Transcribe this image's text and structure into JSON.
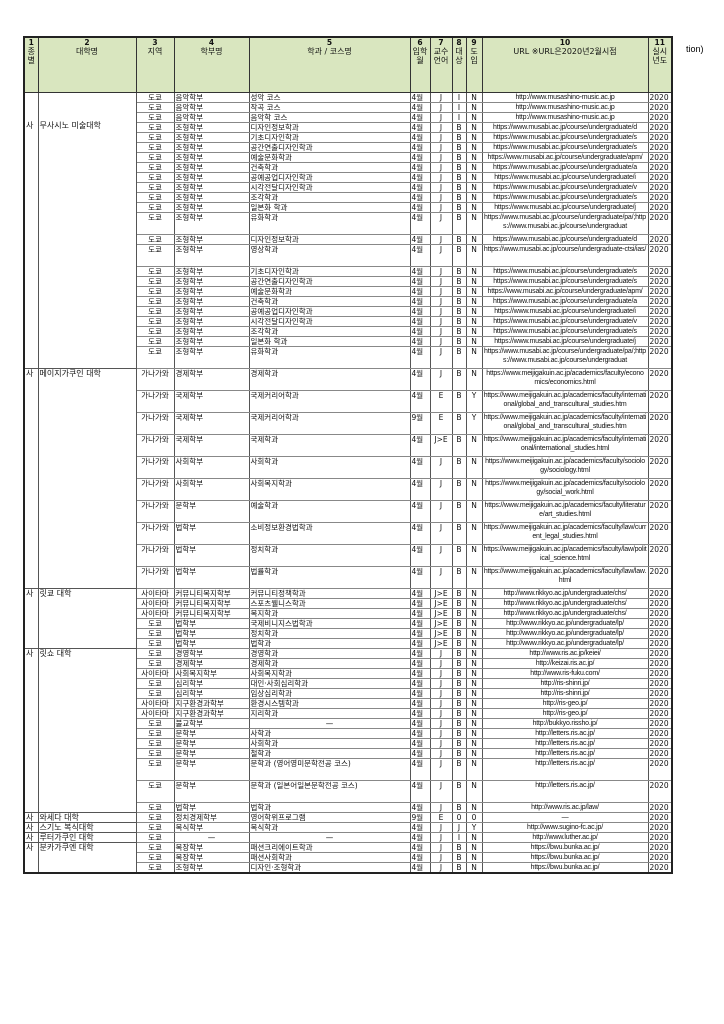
{
  "overflow_text": "tion)",
  "header": [
    {
      "num": "1",
      "label": "종별"
    },
    {
      "num": "2",
      "label": "대학명"
    },
    {
      "num": "3",
      "label": "지역"
    },
    {
      "num": "4",
      "label": "학부명"
    },
    {
      "num": "5",
      "label": "학과 / 코스명"
    },
    {
      "num": "6",
      "label": "입학월"
    },
    {
      "num": "7",
      "label": "교수언어"
    },
    {
      "num": "8",
      "label": "대상"
    },
    {
      "num": "9",
      "label": "도입"
    },
    {
      "num": "10",
      "label": "URL ※URL은2020년2월시점"
    },
    {
      "num": "11",
      "label": "실시년도"
    }
  ],
  "groups": [
    {
      "type": "사",
      "name": "무사시노 미술대학",
      "rows": [
        [
          "도쿄",
          "음악학부",
          "성악 코스",
          "4월",
          "J",
          "I",
          "N",
          "http://www.musashino-music.ac.jp",
          "2020"
        ],
        [
          "도쿄",
          "음악학부",
          "작곡 코스",
          "4월",
          "J",
          "I",
          "N",
          "http://www.musashino-music.ac.jp",
          "2020"
        ],
        [
          "도쿄",
          "음악학부",
          "음악학 코스",
          "4월",
          "J",
          "I",
          "N",
          "http://www.musashino-music.ac.jp",
          "2020"
        ],
        [
          "도쿄",
          "조형학부",
          "디자인정보학과",
          "4월",
          "J",
          "B",
          "N",
          "https://www.musabi.ac.jp/course/undergraduate/d",
          "2020"
        ],
        [
          "도쿄",
          "조형학부",
          "기초디자인학과",
          "4월",
          "J",
          "B",
          "N",
          "https://www.musabi.ac.jp/course/undergraduate/s",
          "2020"
        ],
        [
          "도쿄",
          "조형학부",
          "공간연출디자인학과",
          "4월",
          "J",
          "B",
          "N",
          "https://www.musabi.ac.jp/course/undergraduate/s",
          "2020"
        ],
        [
          "도쿄",
          "조형학부",
          "예술문화학과",
          "4월",
          "J",
          "B",
          "N",
          "https://www.musabi.ac.jp/course/undergraduate/apm/",
          "2020"
        ],
        [
          "도쿄",
          "조형학부",
          "건축학과",
          "4월",
          "J",
          "B",
          "N",
          "https://www.musabi.ac.jp/course/undergraduate/a",
          "2020"
        ],
        [
          "도쿄",
          "조형학부",
          "공예공업디자인학과",
          "4월",
          "J",
          "B",
          "N",
          "https://www.musabi.ac.jp/course/undergraduate/i",
          "2020"
        ],
        [
          "도쿄",
          "조형학부",
          "시각전달디자인학과",
          "4월",
          "J",
          "B",
          "N",
          "https://www.musabi.ac.jp/course/undergraduate/v",
          "2020"
        ],
        [
          "도쿄",
          "조형학부",
          "조각학과",
          "4월",
          "J",
          "B",
          "N",
          "https://www.musabi.ac.jp/course/undergraduate/s",
          "2020"
        ],
        [
          "도쿄",
          "조형학부",
          "일본화 학과",
          "4월",
          "J",
          "B",
          "N",
          "https://www.musabi.ac.jp/course/undergraduate/j",
          "2020"
        ],
        [
          "도쿄",
          "조형학부",
          "유화학과",
          "4월",
          "J",
          "B",
          "N",
          "https://www.musabi.ac.jp/course/undergraduate/pa/;https://www.musabi.ac.jp/course/undergraduat",
          "2020"
        ],
        [
          "도쿄",
          "조형학부",
          "디자인정보학과",
          "4월",
          "J",
          "B",
          "N",
          "https://www.musabi.ac.jp/course/undergraduate/d",
          "2020"
        ],
        [
          "도쿄",
          "조형학부",
          "영상학과",
          "4월",
          "J",
          "B",
          "N",
          "https://www.musabi.ac.jp/course/undergraduate-ctsi/ias/",
          "2020"
        ],
        [
          "도쿄",
          "조형학부",
          "기초디자인학과",
          "4월",
          "J",
          "B",
          "N",
          "https://www.musabi.ac.jp/course/undergraduate/s",
          "2020"
        ],
        [
          "도쿄",
          "조형학부",
          "공간연출디자인학과",
          "4월",
          "J",
          "B",
          "N",
          "https://www.musabi.ac.jp/course/undergraduate/s",
          "2020"
        ],
        [
          "도쿄",
          "조형학부",
          "예술문화학과",
          "4월",
          "J",
          "B",
          "N",
          "https://www.musabi.ac.jp/course/undergraduate/apm/",
          "2020"
        ],
        [
          "도쿄",
          "조형학부",
          "건축학과",
          "4월",
          "J",
          "B",
          "N",
          "https://www.musabi.ac.jp/course/undergraduate/a",
          "2020"
        ],
        [
          "도쿄",
          "조형학부",
          "공예공업디자인학과",
          "4월",
          "J",
          "B",
          "N",
          "https://www.musabi.ac.jp/course/undergraduate/i",
          "2020"
        ],
        [
          "도쿄",
          "조형학부",
          "시각전달디자인학과",
          "4월",
          "J",
          "B",
          "N",
          "https://www.musabi.ac.jp/course/undergraduate/v",
          "2020"
        ],
        [
          "도쿄",
          "조형학부",
          "조각학과",
          "4월",
          "J",
          "B",
          "N",
          "https://www.musabi.ac.jp/course/undergraduate/s",
          "2020"
        ],
        [
          "도쿄",
          "조형학부",
          "일본화 학과",
          "4월",
          "J",
          "B",
          "N",
          "https://www.musabi.ac.jp/course/undergraduate/j",
          "2020"
        ],
        [
          "도쿄",
          "조형학부",
          "유화학과",
          "4월",
          "J",
          "B",
          "N",
          "https://www.musabi.ac.jp/course/undergraduate/pa/;https://www.musabi.ac.jp/course/undergraduat",
          "2020"
        ]
      ]
    },
    {
      "type": "사",
      "name": "메이지가쿠인 대학",
      "rows": [
        [
          "가나가와",
          "경제학부",
          "경제학과",
          "4월",
          "J",
          "B",
          "N",
          "https://www.meijigakuin.ac.jp/academics/faculty/economics/economics.html",
          "2020"
        ],
        [
          "가나가와",
          "국제학부",
          "국제커리어학과",
          "4월",
          "E",
          "B",
          "Y",
          "https://www.meijigakuin.ac.jp/academics/faculty/international/global_and_transcultural_studies.htm",
          "2020"
        ],
        [
          "가나가와",
          "국제학부",
          "국제커리어학과",
          "9월",
          "E",
          "B",
          "Y",
          "https://www.meijigakuin.ac.jp/academics/faculty/international/global_and_transcultural_studies.htm",
          "2020"
        ],
        [
          "가나가와",
          "국제학부",
          "국제학과",
          "4월",
          "J>E",
          "B",
          "N",
          "https://www.meijigakuin.ac.jp/academics/faculty/international/international_studies.html",
          "2020"
        ],
        [
          "가나가와",
          "사회학부",
          "사회학과",
          "4월",
          "J",
          "B",
          "N",
          "https://www.meijigakuin.ac.jp/academics/faculty/sociology/sociology.html",
          "2020"
        ],
        [
          "가나가와",
          "사회학부",
          "사회복지학과",
          "4월",
          "J",
          "B",
          "N",
          "https://www.meijigakuin.ac.jp/academics/faculty/sociology/social_work.html",
          "2020"
        ],
        [
          "가나가와",
          "문학부",
          "예술학과",
          "4월",
          "J",
          "B",
          "N",
          "https://www.meijigakuin.ac.jp/academics/faculty/literature/art_studies.html",
          "2020"
        ],
        [
          "가나가와",
          "법학부",
          "소비정보환경법학과",
          "4월",
          "J",
          "B",
          "N",
          "https://www.meijigakuin.ac.jp/academics/faculty/law/current_legal_studies.html",
          "2020"
        ],
        [
          "가나가와",
          "법학부",
          "정치학과",
          "4월",
          "J",
          "B",
          "N",
          "https://www.meijigakuin.ac.jp/academics/faculty/law/political_science.html",
          "2020"
        ],
        [
          "가나가와",
          "법학부",
          "법률학과",
          "4월",
          "J",
          "B",
          "N",
          "https://www.meijigakuin.ac.jp/academics/faculty/law/law.html",
          "2020"
        ]
      ]
    },
    {
      "type": "사",
      "name": "릿쿄 대학",
      "rows": [
        [
          "사이타마",
          "커뮤니티복지학부",
          "커뮤니티정책학과",
          "4월",
          "J>E",
          "B",
          "N",
          "http://www.rikkyo.ac.jp/undergraduate/chs/",
          "2020"
        ],
        [
          "사이타마",
          "커뮤니티복지학부",
          "스포츠웰니스학과",
          "4월",
          "J>E",
          "B",
          "N",
          "http://www.rikkyo.ac.jp/undergraduate/chs/",
          "2020"
        ],
        [
          "사이타마",
          "커뮤니티복지학부",
          "복지학과",
          "4월",
          "J>E",
          "B",
          "N",
          "http://www.rikkyo.ac.jp/undergraduate/chs/",
          "2020"
        ],
        [
          "도쿄",
          "법학부",
          "국제비니지스법학과",
          "4월",
          "J>E",
          "B",
          "N",
          "http://www.rikkyo.ac.jp/undergraduate/lp/",
          "2020"
        ],
        [
          "도쿄",
          "법학부",
          "정치학과",
          "4월",
          "J>E",
          "B",
          "N",
          "http://www.rikkyo.ac.jp/undergraduate/lp/",
          "2020"
        ],
        [
          "도쿄",
          "법학부",
          "법학과",
          "4월",
          "J>E",
          "B",
          "N",
          "http://www.rikkyo.ac.jp/undergraduate/lp/",
          "2020"
        ]
      ]
    },
    {
      "type": "사",
      "name": "릿쇼 대학",
      "rows": [
        [
          "도쿄",
          "경영학부",
          "경영학과",
          "4월",
          "J",
          "B",
          "N",
          "http://www.ris.ac.jp/keiei/",
          "2020"
        ],
        [
          "도쿄",
          "경제학부",
          "경제학과",
          "4월",
          "J",
          "B",
          "N",
          "http://keizai.ris.ac.jp/",
          "2020"
        ],
        [
          "사이타마",
          "사회복지학부",
          "사회복지학과",
          "4월",
          "J",
          "B",
          "N",
          "http://www.ris-fuku.com/",
          "2020"
        ],
        [
          "도쿄",
          "심리학부",
          "대인·사회심리학과",
          "4월",
          "J",
          "B",
          "N",
          "http://ris-shinri.jp/",
          "2020"
        ],
        [
          "도쿄",
          "심리학부",
          "임상심리학과",
          "4월",
          "J",
          "B",
          "N",
          "http://ris-shinri.jp/",
          "2020"
        ],
        [
          "사이타마",
          "지구환경과학부",
          "환경시스템학과",
          "4월",
          "J",
          "B",
          "N",
          "http://ris-geo.jp/",
          "2020"
        ],
        [
          "사이타마",
          "지구환경과학부",
          "지리학과",
          "4월",
          "J",
          "B",
          "N",
          "http://ris-geo.jp/",
          "2020"
        ],
        [
          "도쿄",
          "불교학부",
          "—",
          "4월",
          "J",
          "B",
          "N",
          "http://bukkyo.rissho.jp/",
          "2020"
        ],
        [
          "도쿄",
          "문학부",
          "사학과",
          "4월",
          "J",
          "B",
          "N",
          "http://letters.ris.ac.jp/",
          "2020"
        ],
        [
          "도쿄",
          "문학부",
          "사회학과",
          "4월",
          "J",
          "B",
          "N",
          "http://letters.ris.ac.jp/",
          "2020"
        ],
        [
          "도쿄",
          "문학부",
          "철학과",
          "4월",
          "J",
          "B",
          "N",
          "http://letters.ris.ac.jp/",
          "2020"
        ],
        [
          "도쿄",
          "문학부",
          "문학과 (영어영미문학전공 코스)",
          "4월",
          "J",
          "B",
          "N",
          "http://letters.ris.ac.jp/",
          "2020"
        ],
        [
          "도쿄",
          "문학부",
          "문학과 (일본어일본문학전공 코스)",
          "4월",
          "J",
          "B",
          "N",
          "http://letters.ris.ac.jp/",
          "2020"
        ],
        [
          "도쿄",
          "법학부",
          "법학과",
          "4월",
          "J",
          "B",
          "N",
          "http://www.ris.ac.jp/law/",
          "2020"
        ]
      ]
    },
    {
      "type": "사",
      "name": "와세다 대학",
      "rows": [
        [
          "도쿄",
          "정치경제학부",
          "영어학위프로그램",
          "9월",
          "E",
          "0",
          "0",
          "—",
          "2020"
        ]
      ]
    },
    {
      "type": "사",
      "name": "스기노 복식대학",
      "rows": [
        [
          "도쿄",
          "복식학부",
          "복식학과",
          "4월",
          "J",
          "J",
          "Y",
          "http://www.sugino-fc.ac.jp/",
          "2020"
        ]
      ]
    },
    {
      "type": "사",
      "name": "루터가쿠인 대학",
      "rows": [
        [
          "도쿄",
          "—",
          "—",
          "4월",
          "J",
          "I",
          "N",
          "http://www.luther.ac.jp/",
          "2020"
        ]
      ]
    },
    {
      "type": "사",
      "name": "분카가쿠엔 대학",
      "rows": [
        [
          "도쿄",
          "복장학부",
          "패션크리에이트학과",
          "4월",
          "J",
          "B",
          "N",
          "https://bwu.bunka.ac.jp/",
          "2020"
        ],
        [
          "도쿄",
          "복장학부",
          "패션사회학과",
          "4월",
          "J",
          "B",
          "N",
          "https://bwu.bunka.ac.jp/",
          "2020"
        ],
        [
          "도쿄",
          "조형학부",
          "디자인·조형학과",
          "4월",
          "J",
          "B",
          "N",
          "https://bwu.bunka.ac.jp/",
          "2020"
        ]
      ]
    }
  ]
}
